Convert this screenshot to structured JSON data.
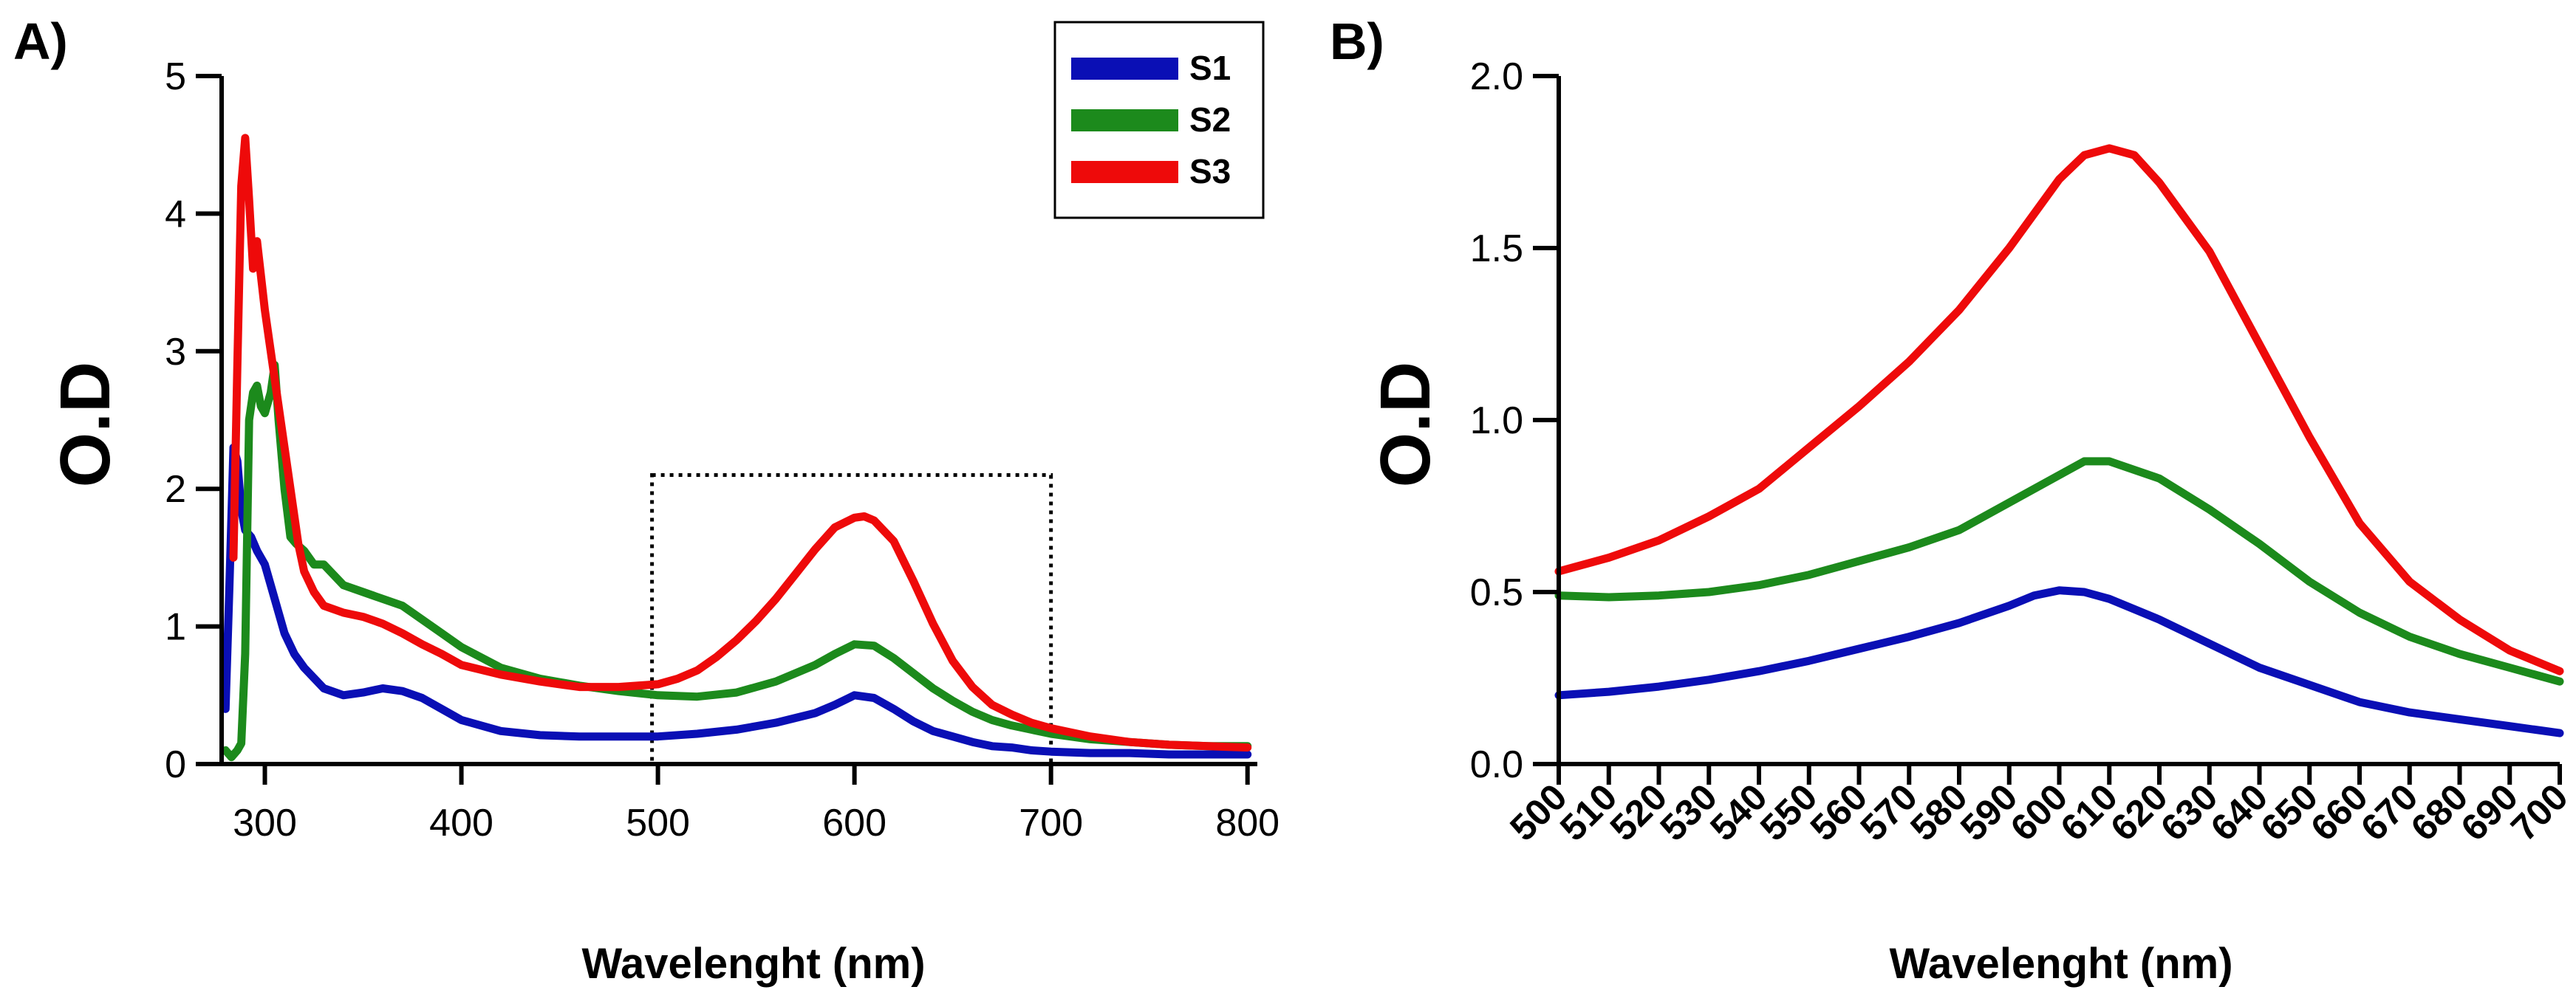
{
  "colors": {
    "S1": "#0A0FB5",
    "S2": "#1C8A1C",
    "S3": "#EE0A0A",
    "axis": "#000000"
  },
  "chart_data": [
    {
      "panel": "A)",
      "type": "line",
      "xlabel": "Wavelenght (nm)",
      "ylabel": "O.D",
      "xlim": [
        278,
        805
      ],
      "ylim": [
        0,
        5
      ],
      "xticks": [
        300,
        400,
        500,
        600,
        700,
        800
      ],
      "yticks": [
        0,
        1,
        2,
        3,
        4,
        5
      ],
      "legend": {
        "position": "top-right",
        "entries": [
          "S1",
          "S2",
          "S3"
        ]
      },
      "highlight_box": {
        "x": [
          497,
          700
        ],
        "y": [
          0,
          2.1
        ],
        "style": "dotted"
      },
      "series": [
        {
          "name": "S1",
          "x": [
            280,
            282,
            284,
            286,
            288,
            290,
            293,
            296,
            300,
            305,
            310,
            315,
            320,
            330,
            340,
            350,
            360,
            370,
            380,
            390,
            400,
            420,
            440,
            460,
            480,
            500,
            520,
            540,
            560,
            580,
            590,
            600,
            610,
            620,
            630,
            640,
            650,
            660,
            670,
            680,
            690,
            700,
            720,
            740,
            760,
            780,
            800
          ],
          "y": [
            0.4,
            1.3,
            2.3,
            2.2,
            1.85,
            1.7,
            1.65,
            1.55,
            1.45,
            1.2,
            0.95,
            0.8,
            0.7,
            0.55,
            0.5,
            0.52,
            0.55,
            0.53,
            0.48,
            0.4,
            0.32,
            0.24,
            0.21,
            0.2,
            0.2,
            0.2,
            0.22,
            0.25,
            0.3,
            0.37,
            0.43,
            0.5,
            0.48,
            0.4,
            0.31,
            0.24,
            0.2,
            0.16,
            0.13,
            0.12,
            0.1,
            0.09,
            0.08,
            0.08,
            0.07,
            0.07,
            0.07
          ]
        },
        {
          "name": "S2",
          "x": [
            280,
            283,
            286,
            288,
            290,
            292,
            294,
            296,
            298,
            300,
            303,
            305,
            307,
            310,
            313,
            316,
            320,
            325,
            330,
            340,
            350,
            360,
            370,
            380,
            390,
            400,
            420,
            440,
            460,
            480,
            500,
            520,
            540,
            560,
            580,
            590,
            600,
            610,
            620,
            630,
            640,
            650,
            660,
            670,
            680,
            690,
            700,
            720,
            740,
            760,
            780,
            800
          ],
          "y": [
            0.1,
            0.05,
            0.1,
            0.15,
            0.8,
            2.5,
            2.7,
            2.75,
            2.6,
            2.55,
            2.7,
            2.9,
            2.5,
            2.0,
            1.65,
            1.6,
            1.55,
            1.45,
            1.45,
            1.3,
            1.25,
            1.2,
            1.15,
            1.05,
            0.95,
            0.85,
            0.7,
            0.62,
            0.57,
            0.53,
            0.5,
            0.49,
            0.52,
            0.6,
            0.72,
            0.8,
            0.87,
            0.86,
            0.77,
            0.66,
            0.55,
            0.46,
            0.38,
            0.32,
            0.28,
            0.25,
            0.22,
            0.18,
            0.16,
            0.14,
            0.13,
            0.13
          ]
        },
        {
          "name": "S3",
          "x": [
            284,
            286,
            288,
            290,
            292,
            294,
            296,
            298,
            300,
            302,
            305,
            308,
            311,
            314,
            317,
            320,
            325,
            330,
            340,
            350,
            360,
            370,
            380,
            390,
            400,
            420,
            440,
            460,
            480,
            500,
            510,
            520,
            530,
            540,
            550,
            560,
            570,
            580,
            590,
            600,
            605,
            610,
            620,
            630,
            640,
            650,
            660,
            670,
            680,
            690,
            700,
            720,
            740,
            760,
            780,
            800
          ],
          "y": [
            1.5,
            2.9,
            4.2,
            4.55,
            4.1,
            3.6,
            3.8,
            3.55,
            3.3,
            3.1,
            2.8,
            2.5,
            2.2,
            1.9,
            1.6,
            1.4,
            1.25,
            1.15,
            1.1,
            1.07,
            1.02,
            0.95,
            0.87,
            0.8,
            0.72,
            0.65,
            0.6,
            0.56,
            0.56,
            0.58,
            0.62,
            0.68,
            0.78,
            0.9,
            1.04,
            1.2,
            1.38,
            1.56,
            1.72,
            1.79,
            1.8,
            1.77,
            1.62,
            1.33,
            1.02,
            0.75,
            0.56,
            0.43,
            0.36,
            0.3,
            0.26,
            0.2,
            0.16,
            0.14,
            0.13,
            0.12
          ]
        }
      ]
    },
    {
      "panel": "B)",
      "type": "line",
      "xlabel": "Wavelenght (nm)",
      "ylabel": "O.D",
      "xlim": [
        500,
        700
      ],
      "ylim": [
        0,
        2.0
      ],
      "xticks": [
        500,
        510,
        520,
        530,
        540,
        550,
        560,
        570,
        580,
        590,
        600,
        610,
        620,
        630,
        640,
        650,
        660,
        670,
        680,
        690,
        700
      ],
      "yticks": [
        "0.0",
        "0.5",
        "1.0",
        "1.5",
        "2.0"
      ],
      "series": [
        {
          "name": "S1",
          "x": [
            500,
            510,
            520,
            530,
            540,
            550,
            560,
            570,
            580,
            590,
            595,
            600,
            605,
            610,
            620,
            630,
            640,
            650,
            660,
            670,
            680,
            690,
            700
          ],
          "y": [
            0.2,
            0.21,
            0.225,
            0.245,
            0.27,
            0.3,
            0.335,
            0.37,
            0.41,
            0.46,
            0.49,
            0.505,
            0.5,
            0.48,
            0.42,
            0.35,
            0.28,
            0.23,
            0.18,
            0.15,
            0.13,
            0.11,
            0.09
          ]
        },
        {
          "name": "S2",
          "x": [
            500,
            510,
            520,
            530,
            540,
            550,
            560,
            570,
            580,
            590,
            600,
            605,
            610,
            620,
            630,
            640,
            650,
            660,
            670,
            680,
            690,
            700
          ],
          "y": [
            0.49,
            0.485,
            0.49,
            0.5,
            0.52,
            0.55,
            0.59,
            0.63,
            0.68,
            0.76,
            0.84,
            0.88,
            0.88,
            0.83,
            0.74,
            0.64,
            0.53,
            0.44,
            0.37,
            0.32,
            0.28,
            0.24
          ]
        },
        {
          "name": "S3",
          "x": [
            500,
            510,
            520,
            530,
            540,
            550,
            560,
            570,
            580,
            590,
            600,
            605,
            610,
            615,
            620,
            630,
            640,
            650,
            660,
            670,
            680,
            690,
            700
          ],
          "y": [
            0.56,
            0.6,
            0.65,
            0.72,
            0.8,
            0.92,
            1.04,
            1.17,
            1.32,
            1.5,
            1.7,
            1.77,
            1.79,
            1.77,
            1.69,
            1.49,
            1.22,
            0.95,
            0.7,
            0.53,
            0.42,
            0.33,
            0.27
          ]
        }
      ]
    }
  ]
}
